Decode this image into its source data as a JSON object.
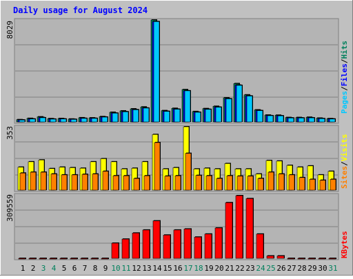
{
  "title": "Daily usage for August 2024",
  "colors": {
    "frame": "#c0c0c0",
    "panel": "#b4b4b4",
    "title": "#0000ff",
    "hits": "#00805c",
    "files": "#0000ff",
    "pages": "#00c8ff",
    "visits": "#ffff00",
    "sites": "#ff8000",
    "kbytes": "#ff0000",
    "weekend_day": "#00805c",
    "weekday": "#000000"
  },
  "chart_data": [
    {
      "type": "bar",
      "panel": "hits-files-pages",
      "ymax_label": "8029",
      "legend": {
        "pages": "Pages",
        "files": "Files",
        "hits": "Hits",
        "sep": "/"
      },
      "ylim": [
        0,
        8029
      ],
      "series": [
        {
          "name": "Hits",
          "values": [
            180,
            280,
            400,
            260,
            270,
            230,
            330,
            320,
            420,
            760,
            870,
            1030,
            1180,
            8029,
            890,
            1070,
            2550,
            820,
            1050,
            1230,
            1900,
            3020,
            2130,
            950,
            540,
            530,
            350,
            350,
            370,
            300,
            260
          ]
        },
        {
          "name": "Files",
          "values": [
            160,
            240,
            350,
            230,
            240,
            210,
            290,
            290,
            390,
            700,
            810,
            970,
            1100,
            7900,
            840,
            1010,
            2450,
            770,
            1000,
            1170,
            1830,
            2900,
            2050,
            900,
            500,
            490,
            320,
            320,
            330,
            270,
            240
          ]
        },
        {
          "name": "Pages",
          "values": [
            150,
            230,
            330,
            220,
            230,
            200,
            280,
            280,
            380,
            690,
            800,
            960,
            1090,
            7900,
            830,
            1000,
            2450,
            760,
            990,
            1160,
            1820,
            2880,
            2040,
            890,
            490,
            480,
            310,
            310,
            320,
            260,
            230
          ]
        }
      ]
    },
    {
      "type": "bar",
      "panel": "visits-sites",
      "ymax_label": "353",
      "legend": {
        "sites": "Sites",
        "visits": "Visits",
        "sep": "/"
      },
      "ylim": [
        0,
        353
      ],
      "series": [
        {
          "name": "Visits",
          "values": [
            128,
            158,
            168,
            120,
            128,
            125,
            122,
            158,
            175,
            158,
            118,
            122,
            158,
            310,
            118,
            125,
            353,
            118,
            122,
            118,
            148,
            118,
            118,
            90,
            165,
            162,
            138,
            128,
            135,
            85,
            105
          ]
        },
        {
          "name": "Sites",
          "values": [
            95,
            100,
            100,
            90,
            85,
            85,
            88,
            90,
            105,
            80,
            80,
            65,
            80,
            265,
            78,
            80,
            205,
            82,
            80,
            65,
            80,
            78,
            78,
            65,
            100,
            90,
            85,
            70,
            60,
            55,
            60
          ]
        }
      ]
    },
    {
      "type": "bar",
      "panel": "kbytes",
      "ymax_label": "309559",
      "legend": {
        "kbytes": "KBytes"
      },
      "ylim": [
        0,
        309559
      ],
      "series": [
        {
          "name": "KBytes",
          "values": [
            0,
            0,
            0,
            0,
            0,
            0,
            0,
            0,
            0,
            75000,
            95000,
            125000,
            140000,
            185000,
            115000,
            140000,
            145000,
            105000,
            120000,
            150000,
            275000,
            309559,
            295000,
            120000,
            12000,
            12000,
            0,
            0,
            0,
            0,
            0
          ]
        }
      ]
    }
  ],
  "days": [
    "1",
    "2",
    "3",
    "4",
    "5",
    "6",
    "7",
    "8",
    "9",
    "10",
    "11",
    "12",
    "13",
    "14",
    "15",
    "16",
    "17",
    "18",
    "19",
    "20",
    "21",
    "22",
    "23",
    "24",
    "25",
    "26",
    "27",
    "28",
    "29",
    "30",
    "31"
  ],
  "weekend_days": [
    3,
    4,
    10,
    11,
    17,
    18,
    24,
    25,
    31
  ]
}
